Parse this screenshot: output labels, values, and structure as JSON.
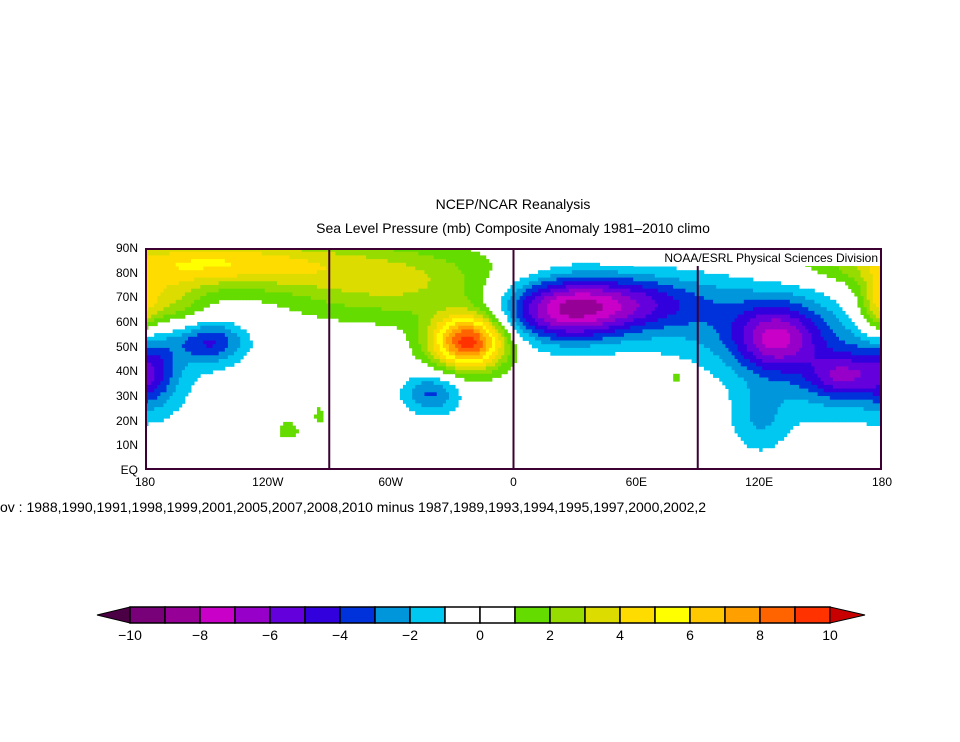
{
  "title": {
    "line1": "NCEP/NCAR Reanalysis",
    "line2": "Sea Level Pressure (mb) Composite Anomaly 1981–2010 climo"
  },
  "credit": "NOAA/ESRL Physical Sciences Division",
  "caption": "ov : 1988,1990,1991,1998,1999,2001,2005,2007,2008,2010  minus  1987,1989,1993,1994,1995,1997,2000,2002,2",
  "chart_data": {
    "type": "heatmap",
    "projection": "cylindrical equidistant",
    "xlim": [
      -180,
      180
    ],
    "ylim": [
      0,
      90
    ],
    "lat_ticks": [
      "90N",
      "80N",
      "70N",
      "60N",
      "50N",
      "40N",
      "30N",
      "20N",
      "10N",
      "EQ"
    ],
    "lon_ticks": [
      "180",
      "120W",
      "60W",
      "0",
      "60E",
      "120E",
      "180"
    ],
    "meridian_lines_lon": [
      -90,
      0,
      90
    ],
    "units": "mb",
    "anomaly_centers": [
      {
        "lon": -22,
        "lat": 52,
        "value": 9.5,
        "lon_spread": 13,
        "lat_spread": 8
      },
      {
        "lon": -60,
        "lat": 76,
        "value": 3.2,
        "lon_spread": 40,
        "lat_spread": 11
      },
      {
        "lon": -150,
        "lat": 84,
        "value": 4.8,
        "lon_spread": 45,
        "lat_spread": 7
      },
      {
        "lon": -172,
        "lat": 68,
        "value": 3.4,
        "lon_spread": 15,
        "lat_spread": 8
      },
      {
        "lon": 178,
        "lat": 64,
        "value": 2.5,
        "lon_spread": 6,
        "lat_spread": 10
      },
      {
        "lon": 25,
        "lat": 65,
        "value": -7.2,
        "lon_spread": 22,
        "lat_spread": 9
      },
      {
        "lon": 60,
        "lat": 68,
        "value": -3.5,
        "lon_spread": 25,
        "lat_spread": 8
      },
      {
        "lon": 128,
        "lat": 53,
        "value": -4.8,
        "lon_spread": 14,
        "lat_spread": 9
      },
      {
        "lon": 160,
        "lat": 38,
        "value": -3.5,
        "lon_spread": 11,
        "lat_spread": 6
      },
      {
        "lon": 120,
        "lat": 60,
        "value": -2.4,
        "lon_spread": 40,
        "lat_spread": 14
      },
      {
        "lon": 160,
        "lat": 38,
        "value": -2.2,
        "lon_spread": 30,
        "lat_spread": 14
      },
      {
        "lon": 120,
        "lat": 20,
        "value": -1.8,
        "lon_spread": 10,
        "lat_spread": 10
      },
      {
        "lon": -148,
        "lat": 52,
        "value": -3.8,
        "lon_spread": 12,
        "lat_spread": 6
      },
      {
        "lon": -178,
        "lat": 40,
        "value": -3.2,
        "lon_spread": 9,
        "lat_spread": 10
      },
      {
        "lon": -40,
        "lat": 31,
        "value": -3.2,
        "lon_spread": 10,
        "lat_spread": 6
      },
      {
        "lon": -110,
        "lat": 16,
        "value": 1.8,
        "lon_spread": 4,
        "lat_spread": 3
      },
      {
        "lon": -95,
        "lat": 22,
        "value": 1.6,
        "lon_spread": 2,
        "lat_spread": 3
      },
      {
        "lon": 80,
        "lat": 38,
        "value": 1.6,
        "lon_spread": 6,
        "lat_spread": 3
      }
    ],
    "colorbar": {
      "ticks": [
        "−10",
        "−8",
        "−6",
        "−4",
        "−2",
        "0",
        "2",
        "4",
        "6",
        "8",
        "10"
      ],
      "range": [
        -10,
        10
      ],
      "interval": 1,
      "under_color": "#4b0046",
      "over_color": "#c80000",
      "colors": [
        "#780078",
        "#960096",
        "#c800c8",
        "#9600c8",
        "#6400dc",
        "#3200dc",
        "#0032dc",
        "#0096dc",
        "#00c8f0",
        "#ffffff",
        "#ffffff",
        "#64dc00",
        "#96dc00",
        "#dcdc00",
        "#ffdc00",
        "#ffff00",
        "#ffc800",
        "#ffa000",
        "#ff6400",
        "#ff3200"
      ]
    },
    "line_color": "#3c0032"
  }
}
